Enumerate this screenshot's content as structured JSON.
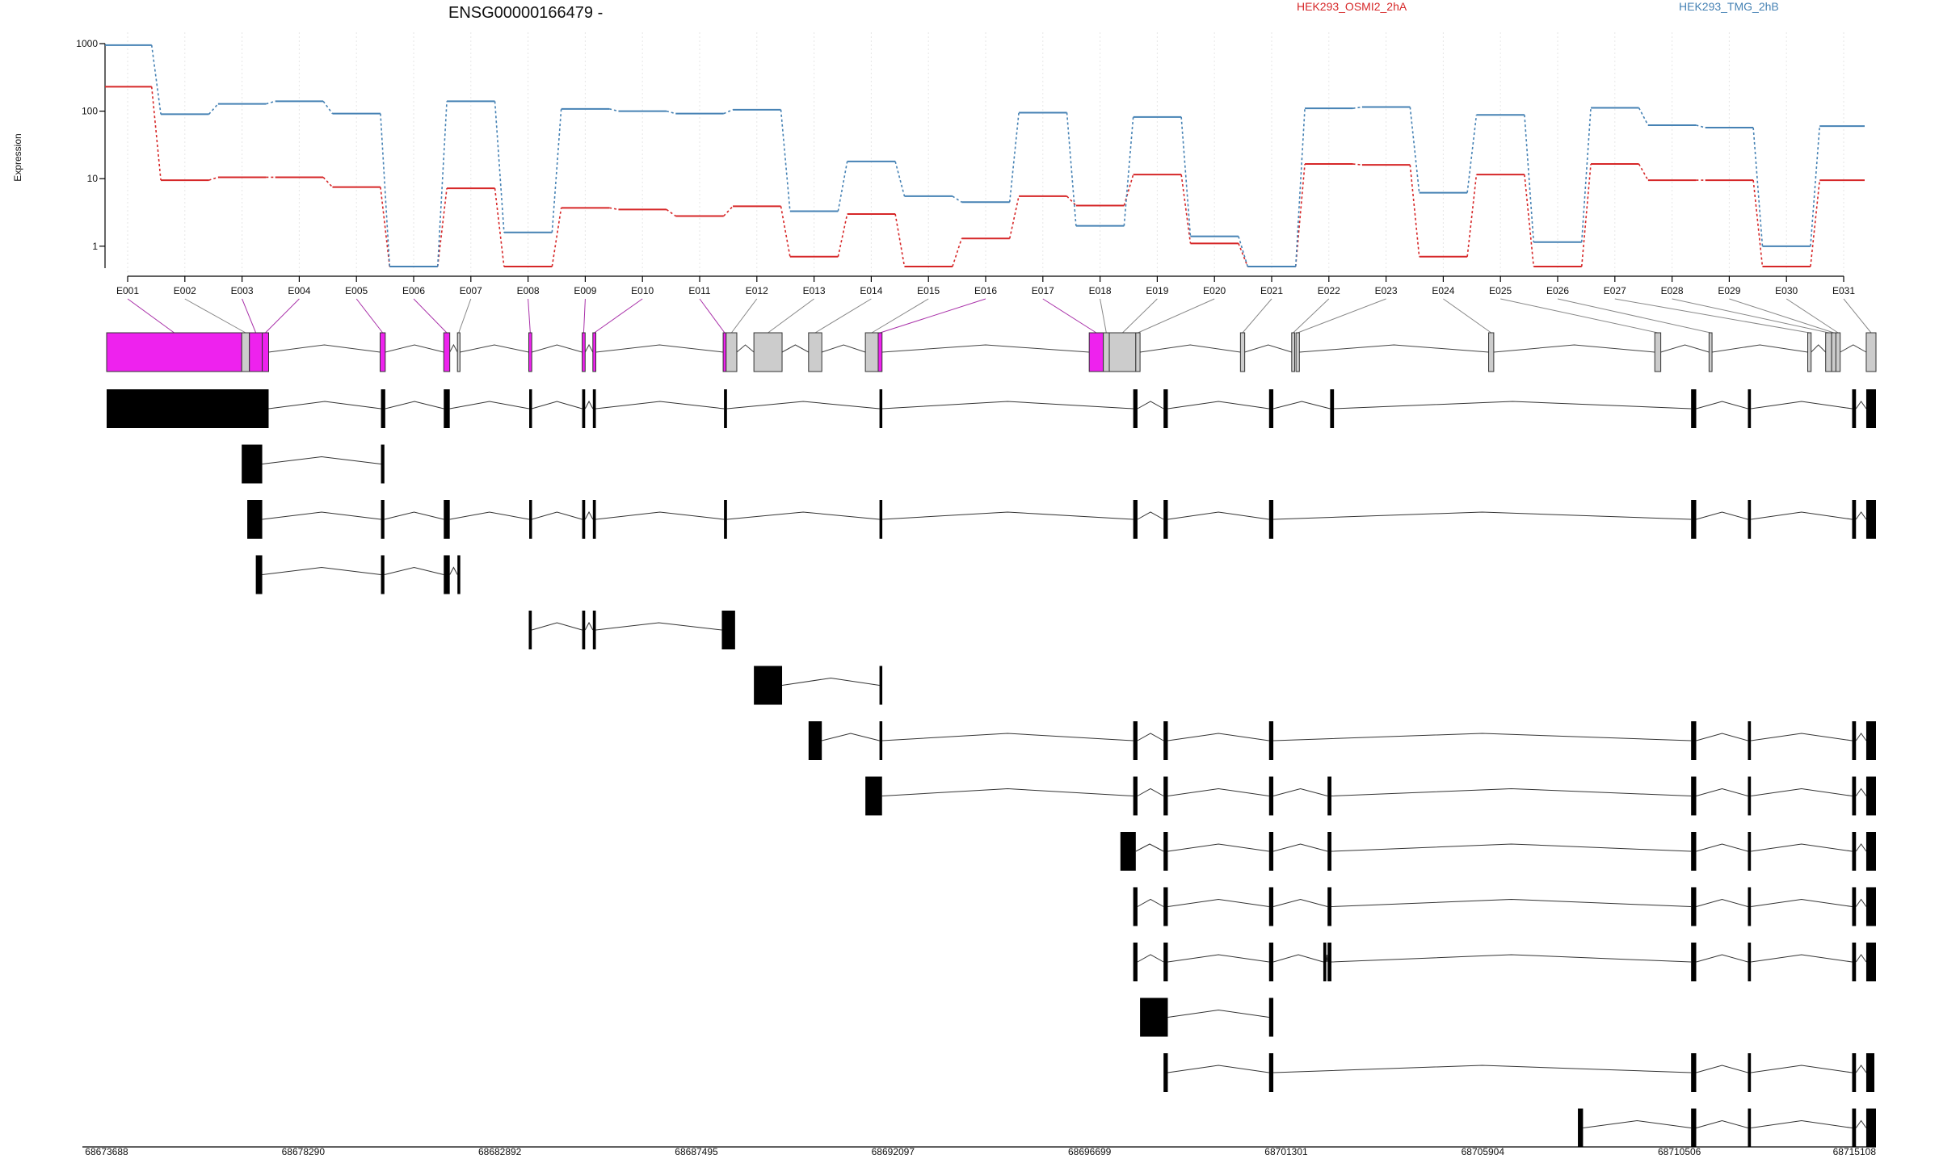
{
  "chart_data": {
    "type": "line",
    "title": "ENSG00000166479 -",
    "ylabel": "Expression",
    "xlabel": "",
    "y_scale": "log",
    "ylim": [
      0.5,
      1000
    ],
    "y_ticks": [
      1,
      10,
      100,
      1000
    ],
    "y_tick_labels": [
      "1",
      "10",
      "100",
      "1000"
    ],
    "legend_placement": "top",
    "grid": "vertical dashed, light",
    "categories": [
      "E001",
      "E002",
      "E003",
      "E004",
      "E005",
      "E006",
      "E007",
      "E008",
      "E009",
      "E010",
      "E011",
      "E012",
      "E013",
      "E014",
      "E015",
      "E016",
      "E017",
      "E018",
      "E019",
      "E020",
      "E021",
      "E022",
      "E023",
      "E024",
      "E025",
      "E026",
      "E027",
      "E028",
      "E029",
      "E030",
      "E031"
    ],
    "series": [
      {
        "name": "HEK293_OSMI2_2hA",
        "color": "#d62728",
        "values": [
          230,
          9.5,
          10.5,
          10.5,
          7.5,
          0.5,
          7.2,
          0.5,
          3.7,
          3.5,
          2.8,
          3.9,
          0.7,
          3.0,
          0.5,
          1.3,
          5.5,
          4.0,
          11.5,
          1.1,
          0.5,
          16.5,
          16.0,
          0.7,
          11.5,
          0.5,
          16.5,
          9.5,
          9.5,
          0.5,
          9.5
        ]
      },
      {
        "name": "HEK293_TMG_2hB",
        "color": "#4682b4",
        "values": [
          950,
          90,
          128,
          140,
          92,
          0.5,
          140,
          1.6,
          108,
          100,
          92,
          105,
          3.3,
          18,
          5.5,
          4.5,
          95,
          2.0,
          82,
          1.4,
          0.5,
          110,
          115,
          6.2,
          88,
          1.15,
          112,
          62,
          57,
          1.0,
          60
        ]
      }
    ],
    "genomic_axis": {
      "range": [
        68673688,
        68715108
      ],
      "tick_labels": [
        "68673688",
        "68678290",
        "68682892",
        "68687495",
        "68692097",
        "68696699",
        "68701301",
        "68705904",
        "68710506",
        "68715108"
      ]
    },
    "exon_bins": [
      {
        "id": "E001",
        "start": 68673688,
        "end": 68676850,
        "significant": true
      },
      {
        "id": "E002",
        "start": 68676850,
        "end": 68677030,
        "significant": false
      },
      {
        "id": "E003",
        "start": 68677030,
        "end": 68677330,
        "significant": true
      },
      {
        "id": "E004",
        "start": 68677330,
        "end": 68677480,
        "significant": true
      },
      {
        "id": "E005",
        "start": 68680090,
        "end": 68680210,
        "significant": true
      },
      {
        "id": "E006",
        "start": 68681580,
        "end": 68681720,
        "significant": true
      },
      {
        "id": "E007",
        "start": 68681900,
        "end": 68681960,
        "significant": false
      },
      {
        "id": "E008",
        "start": 68683570,
        "end": 68683640,
        "significant": true
      },
      {
        "id": "E009",
        "start": 68684820,
        "end": 68684890,
        "significant": true
      },
      {
        "id": "E010",
        "start": 68685070,
        "end": 68685140,
        "significant": true
      },
      {
        "id": "E011",
        "start": 68688120,
        "end": 68688190,
        "significant": true
      },
      {
        "id": "E012",
        "start": 68688190,
        "end": 68688440,
        "significant": false
      },
      {
        "id": "E013",
        "start": 68688840,
        "end": 68689500,
        "significant": false
      },
      {
        "id": "E014",
        "start": 68690120,
        "end": 68690430,
        "significant": false
      },
      {
        "id": "E015",
        "start": 68691450,
        "end": 68691750,
        "significant": false
      },
      {
        "id": "E016",
        "start": 68691750,
        "end": 68691840,
        "significant": true
      },
      {
        "id": "E017",
        "start": 68696690,
        "end": 68697020,
        "significant": true
      },
      {
        "id": "E018",
        "start": 68697020,
        "end": 68697160,
        "significant": false
      },
      {
        "id": "E019",
        "start": 68697160,
        "end": 68697780,
        "significant": false
      },
      {
        "id": "E020",
        "start": 68697780,
        "end": 68697880,
        "significant": false
      },
      {
        "id": "E021",
        "start": 68700230,
        "end": 68700330,
        "significant": false
      },
      {
        "id": "E022",
        "start": 68701430,
        "end": 68701500,
        "significant": false
      },
      {
        "id": "E023",
        "start": 68701530,
        "end": 68701610,
        "significant": false
      },
      {
        "id": "E024",
        "start": 68706040,
        "end": 68706160,
        "significant": false
      },
      {
        "id": "E025",
        "start": 68709930,
        "end": 68710070,
        "significant": false
      },
      {
        "id": "E026",
        "start": 68711200,
        "end": 68711270,
        "significant": false
      },
      {
        "id": "E027",
        "start": 68713510,
        "end": 68713590,
        "significant": false
      },
      {
        "id": "E028",
        "start": 68713930,
        "end": 68714070,
        "significant": false
      },
      {
        "id": "E029",
        "start": 68714070,
        "end": 68714170,
        "significant": false
      },
      {
        "id": "E030",
        "start": 68714170,
        "end": 68714270,
        "significant": false
      },
      {
        "id": "E031",
        "start": 68714880,
        "end": 68715108,
        "significant": false
      }
    ],
    "transcripts": [
      [
        [
          68673688,
          68677480
        ],
        [
          68680110,
          68680210
        ],
        [
          68681580,
          68681720
        ],
        [
          68683580,
          68683640
        ],
        [
          68684820,
          68684890
        ],
        [
          68685070,
          68685140
        ],
        [
          68688140,
          68688210
        ],
        [
          68691780,
          68691840
        ],
        [
          68697720,
          68697820
        ],
        [
          68698430,
          68698530
        ],
        [
          68700900,
          68701000
        ],
        [
          68702330,
          68702420
        ],
        [
          68710780,
          68710900
        ],
        [
          68712110,
          68712180
        ],
        [
          68714550,
          68714640
        ],
        [
          68714880,
          68715108
        ]
      ],
      [
        [
          68676850,
          68677330
        ],
        [
          68680110,
          68680190
        ]
      ],
      [
        [
          68676980,
          68677330
        ],
        [
          68680110,
          68680190
        ],
        [
          68681580,
          68681720
        ],
        [
          68683580,
          68683640
        ],
        [
          68684820,
          68684890
        ],
        [
          68685070,
          68685140
        ],
        [
          68688140,
          68688210
        ],
        [
          68691780,
          68691840
        ],
        [
          68697720,
          68697820
        ],
        [
          68698430,
          68698530
        ],
        [
          68700900,
          68701000
        ],
        [
          68710780,
          68710900
        ],
        [
          68712110,
          68712180
        ],
        [
          68714550,
          68714640
        ],
        [
          68714880,
          68715108
        ]
      ],
      [
        [
          68677180,
          68677330
        ],
        [
          68680110,
          68680190
        ],
        [
          68681580,
          68681720
        ],
        [
          68681900,
          68681960
        ]
      ],
      [
        [
          68683570,
          68683640
        ],
        [
          68684820,
          68684890
        ],
        [
          68685070,
          68685140
        ],
        [
          68688090,
          68688400
        ]
      ],
      [
        [
          68688840,
          68689500
        ],
        [
          68691780,
          68691840
        ]
      ],
      [
        [
          68690120,
          68690430
        ],
        [
          68691780,
          68691840
        ],
        [
          68697720,
          68697820
        ],
        [
          68698430,
          68698530
        ],
        [
          68700900,
          68701000
        ],
        [
          68710780,
          68710900
        ],
        [
          68712110,
          68712180
        ],
        [
          68714550,
          68714640
        ],
        [
          68714880,
          68715108
        ]
      ],
      [
        [
          68691450,
          68691840
        ],
        [
          68697720,
          68697820
        ],
        [
          68698430,
          68698530
        ],
        [
          68700900,
          68701000
        ],
        [
          68702270,
          68702360
        ],
        [
          68710780,
          68710900
        ],
        [
          68712110,
          68712180
        ],
        [
          68714550,
          68714640
        ],
        [
          68714880,
          68715108
        ]
      ],
      [
        [
          68697420,
          68697780
        ],
        [
          68698430,
          68698530
        ],
        [
          68700900,
          68701000
        ],
        [
          68702270,
          68702360
        ],
        [
          68710780,
          68710900
        ],
        [
          68712110,
          68712180
        ],
        [
          68714550,
          68714640
        ],
        [
          68714880,
          68715108
        ]
      ],
      [
        [
          68697720,
          68697820
        ],
        [
          68698430,
          68698530
        ],
        [
          68700900,
          68701000
        ],
        [
          68702270,
          68702360
        ],
        [
          68710780,
          68710900
        ],
        [
          68712110,
          68712180
        ],
        [
          68714550,
          68714640
        ],
        [
          68714880,
          68715108
        ]
      ],
      [
        [
          68697720,
          68697820
        ],
        [
          68698430,
          68698530
        ],
        [
          68700900,
          68701000
        ],
        [
          68702170,
          68702240
        ],
        [
          68702270,
          68702360
        ],
        [
          68710780,
          68710900
        ],
        [
          68712110,
          68712180
        ],
        [
          68714550,
          68714640
        ],
        [
          68714880,
          68715108
        ]
      ],
      [
        [
          68697880,
          68698530
        ],
        [
          68700900,
          68701000
        ]
      ],
      [
        [
          68698430,
          68698530
        ],
        [
          68700900,
          68701000
        ],
        [
          68710780,
          68710900
        ],
        [
          68712110,
          68712180
        ],
        [
          68714550,
          68714640
        ],
        [
          68714880,
          68715070
        ]
      ],
      [
        [
          68708130,
          68708250
        ],
        [
          68710780,
          68710900
        ],
        [
          68712110,
          68712180
        ],
        [
          68714550,
          68714640
        ],
        [
          68714880,
          68715108
        ]
      ]
    ]
  }
}
